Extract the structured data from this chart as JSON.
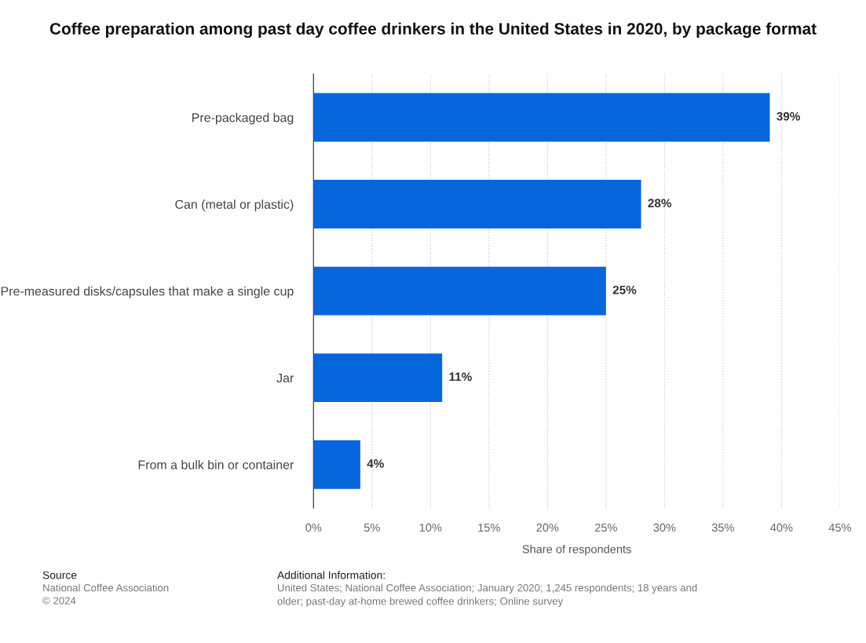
{
  "chart_data": {
    "type": "bar",
    "orientation": "horizontal",
    "title": "Coffee preparation among past day coffee drinkers in the United States in 2020, by package format",
    "categories": [
      "Pre-packaged bag",
      "Can (metal or plastic)",
      "Pre-measured disks/capsules that make a single cup",
      "Jar",
      "From a bulk bin or container"
    ],
    "values": [
      39,
      28,
      25,
      11,
      4
    ],
    "value_labels": [
      "39%",
      "28%",
      "25%",
      "11%",
      "4%"
    ],
    "color": "#0866dc",
    "xlabel": "Share of respondents",
    "xlim": [
      0,
      45
    ],
    "xticks": [
      {
        "value": 0,
        "label": "0%"
      },
      {
        "value": 5,
        "label": "5%"
      },
      {
        "value": 10,
        "label": "10%"
      },
      {
        "value": 15,
        "label": "15%"
      },
      {
        "value": 20,
        "label": "20%"
      },
      {
        "value": 25,
        "label": "25%"
      },
      {
        "value": 30,
        "label": "30%"
      },
      {
        "value": 35,
        "label": "35%"
      },
      {
        "value": 40,
        "label": "40%"
      },
      {
        "value": 45,
        "label": "45%"
      }
    ],
    "grid": "x",
    "annotations": [
      "Source",
      "National Coffee Association",
      "© 2024",
      "Additional Information:",
      "United States; National Coffee Association; January 2020; 1,245 respondents; 18 years and older; past-day at-home brewed coffee drinkers; Online survey"
    ]
  }
}
